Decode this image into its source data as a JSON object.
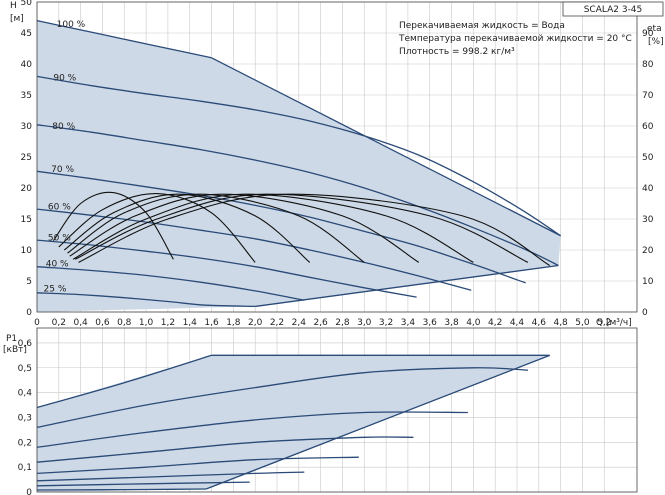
{
  "model": "SCALA2 3-45",
  "info_lines": [
    "Перекачиваемая жидкость = Вода",
    "Температура перекачиваемой жидкости = 20 °C",
    "Плотность = 998.2 кг/м³"
  ],
  "colors": {
    "curve": "#2a4a78",
    "zone": "#cdd9e6",
    "eta": "#111111",
    "grid": "#c9c9c9"
  },
  "chart_data": [
    {
      "type": "line",
      "name": "H-Q",
      "xlabel": "Q [м³/ч]",
      "ylabel_lines": [
        "H",
        "[м]"
      ],
      "y2label_lines": [
        "eta",
        "[%]"
      ],
      "xlim": [
        0,
        5.5
      ],
      "ylim": [
        0,
        50
      ],
      "y2lim": [
        0,
        100
      ],
      "x_ticks": [
        "0",
        "0,2",
        "0,4",
        "0,6",
        "0,8",
        "1,0",
        "1,2",
        "1,4",
        "1,6",
        "1,8",
        "2,0",
        "2,2",
        "2,4",
        "2,6",
        "2,8",
        "3,0",
        "3,2",
        "3,4",
        "3,6",
        "3,8",
        "4,0",
        "4,2",
        "4,4",
        "4,6",
        "4,8",
        "5,0",
        "5,2"
      ],
      "y_ticks": [
        "0",
        "5",
        "10",
        "15",
        "20",
        "25",
        "30",
        "35",
        "40",
        "45",
        "50"
      ],
      "y2_ticks": [
        "0",
        "10",
        "20",
        "30",
        "40",
        "50",
        "60",
        "70",
        "80",
        "90"
      ],
      "grid": true,
      "speed_labels": [
        {
          "label": "100 %",
          "x": 0.18,
          "y": 46.0
        },
        {
          "label": "90 %",
          "x": 0.15,
          "y": 37.3
        },
        {
          "label": "80 %",
          "x": 0.14,
          "y": 29.5
        },
        {
          "label": "70 %",
          "x": 0.13,
          "y": 22.6
        },
        {
          "label": "60 %",
          "x": 0.1,
          "y": 16.5
        },
        {
          "label": "50 %",
          "x": 0.1,
          "y": 11.5
        },
        {
          "label": "40 %",
          "x": 0.08,
          "y": 7.3
        },
        {
          "label": "25 %",
          "x": 0.06,
          "y": 3.3
        }
      ],
      "series": [
        {
          "name": "100 %",
          "x": [
            0,
            0.4,
            0.8,
            1.2,
            1.6
          ],
          "y": [
            47.0,
            45.5,
            44.0,
            42.5,
            41.0
          ]
        },
        {
          "name": "90 %",
          "x": [
            0,
            0.5,
            1.0,
            1.5,
            2.0,
            2.5,
            3.0,
            3.5,
            4.0,
            4.45,
            4.8
          ],
          "y": [
            38.0,
            36.5,
            35.2,
            34.0,
            32.6,
            30.8,
            28.4,
            25.3,
            21.0,
            16.4,
            12.3
          ]
        },
        {
          "name": "80 %",
          "x": [
            0,
            0.5,
            1.0,
            1.5,
            2.0,
            2.5,
            3.0,
            3.5,
            4.0,
            4.5,
            4.78
          ],
          "y": [
            30.2,
            29.0,
            27.6,
            26.2,
            24.5,
            22.5,
            20.0,
            17.0,
            13.6,
            9.9,
            7.5
          ]
        },
        {
          "name": "70 %",
          "x": [
            0,
            0.5,
            1.0,
            1.5,
            2.0,
            2.5,
            3.0,
            3.5,
            4.0,
            4.4,
            4.48
          ],
          "y": [
            22.7,
            21.5,
            20.2,
            18.8,
            17.2,
            15.3,
            13.0,
            10.6,
            7.7,
            5.2,
            4.7
          ]
        },
        {
          "name": "60 %",
          "x": [
            0,
            0.5,
            1.0,
            1.5,
            2.0,
            2.5,
            3.0,
            3.5,
            3.98
          ],
          "y": [
            16.6,
            15.6,
            14.5,
            13.2,
            11.8,
            10.0,
            8.0,
            5.8,
            3.5
          ]
        },
        {
          "name": "50 %",
          "x": [
            0,
            0.5,
            1.0,
            1.5,
            2.0,
            2.5,
            3.0,
            3.48
          ],
          "y": [
            11.6,
            10.8,
            9.8,
            8.7,
            7.3,
            5.6,
            3.9,
            2.4
          ]
        },
        {
          "name": "40 %",
          "x": [
            0,
            0.5,
            1.0,
            1.5,
            2.0,
            2.45
          ],
          "y": [
            7.3,
            6.7,
            5.9,
            4.8,
            3.4,
            1.9
          ]
        },
        {
          "name": "25 %",
          "x": [
            0,
            0.4,
            0.8,
            1.2,
            1.55,
            2.0
          ],
          "y": [
            3.1,
            2.8,
            2.3,
            1.7,
            1.1,
            0.9
          ]
        }
      ],
      "envelope": [
        [
          0,
          47.0
        ],
        [
          1.6,
          41.0
        ],
        [
          4.8,
          12.3
        ],
        [
          4.78,
          7.5
        ],
        [
          2.0,
          0.9
        ],
        [
          0,
          0
        ]
      ],
      "eta_series": [
        {
          "x": [
            0.15,
            0.4,
            0.7,
            1.0,
            1.25
          ],
          "y": [
            23,
            35,
            38.5,
            32,
            17
          ]
        },
        {
          "x": [
            0.2,
            0.6,
            1.1,
            1.6,
            2.0
          ],
          "y": [
            21,
            33,
            38.2,
            32,
            16
          ]
        },
        {
          "x": [
            0.25,
            0.7,
            1.3,
            2.0,
            2.5
          ],
          "y": [
            20,
            32,
            38,
            31,
            16
          ]
        },
        {
          "x": [
            0.28,
            0.8,
            1.5,
            2.4,
            3.0
          ],
          "y": [
            19,
            32,
            38,
            31,
            16
          ]
        },
        {
          "x": [
            0.3,
            0.9,
            1.7,
            2.8,
            3.5
          ],
          "y": [
            18,
            31,
            38,
            31,
            16
          ]
        },
        {
          "x": [
            0.33,
            1.0,
            1.9,
            3.2,
            4.0
          ],
          "y": [
            17,
            30,
            38,
            31,
            16
          ]
        },
        {
          "x": [
            0.35,
            1.1,
            2.1,
            3.6,
            4.5
          ],
          "y": [
            17,
            30,
            38,
            31,
            16
          ]
        },
        {
          "x": [
            0.38,
            1.2,
            2.3,
            3.9,
            4.7
          ],
          "y": [
            16,
            30,
            38,
            31,
            15
          ]
        }
      ]
    },
    {
      "type": "line",
      "name": "P1-Q",
      "ylabel_lines": [
        "P1",
        "[кВт]"
      ],
      "xlim": [
        0,
        5.5
      ],
      "ylim": [
        0,
        0.6
      ],
      "y_ticks": [
        "0",
        "0,1",
        "0,2",
        "0,3",
        "0,4",
        "0,5",
        "0,6"
      ],
      "grid": true,
      "series": [
        {
          "name": "100 %",
          "x": [
            0,
            0.8,
            1.6
          ],
          "y": [
            0.34,
            0.44,
            0.55
          ]
        },
        {
          "name": "90 %",
          "x": [
            0,
            1.0,
            2.0,
            3.0,
            4.0,
            4.5
          ],
          "y": [
            0.26,
            0.35,
            0.42,
            0.48,
            0.5,
            0.49
          ]
        },
        {
          "name": "80 %",
          "x": [
            0,
            1.0,
            2.0,
            3.0,
            3.95
          ],
          "y": [
            0.18,
            0.24,
            0.29,
            0.32,
            0.32
          ]
        },
        {
          "name": "70 %",
          "x": [
            0,
            1.0,
            2.0,
            3.0,
            3.45
          ],
          "y": [
            0.12,
            0.16,
            0.2,
            0.22,
            0.22
          ]
        },
        {
          "name": "60 %",
          "x": [
            0,
            1.0,
            2.0,
            2.95
          ],
          "y": [
            0.075,
            0.1,
            0.13,
            0.14
          ]
        },
        {
          "name": "50 %",
          "x": [
            0,
            1.0,
            2.0,
            2.45
          ],
          "y": [
            0.045,
            0.06,
            0.075,
            0.08
          ]
        },
        {
          "name": "40 %",
          "x": [
            0,
            1.0,
            1.95
          ],
          "y": [
            0.025,
            0.033,
            0.04
          ]
        },
        {
          "name": "25 %",
          "x": [
            0,
            0.5,
            1.0,
            1.55
          ],
          "y": [
            0.008,
            0.009,
            0.01,
            0.012
          ]
        }
      ],
      "envelope": [
        [
          0,
          0.34
        ],
        [
          1.6,
          0.55
        ],
        [
          4.7,
          0.55
        ],
        [
          1.55,
          0.012
        ],
        [
          0,
          0
        ]
      ]
    }
  ]
}
